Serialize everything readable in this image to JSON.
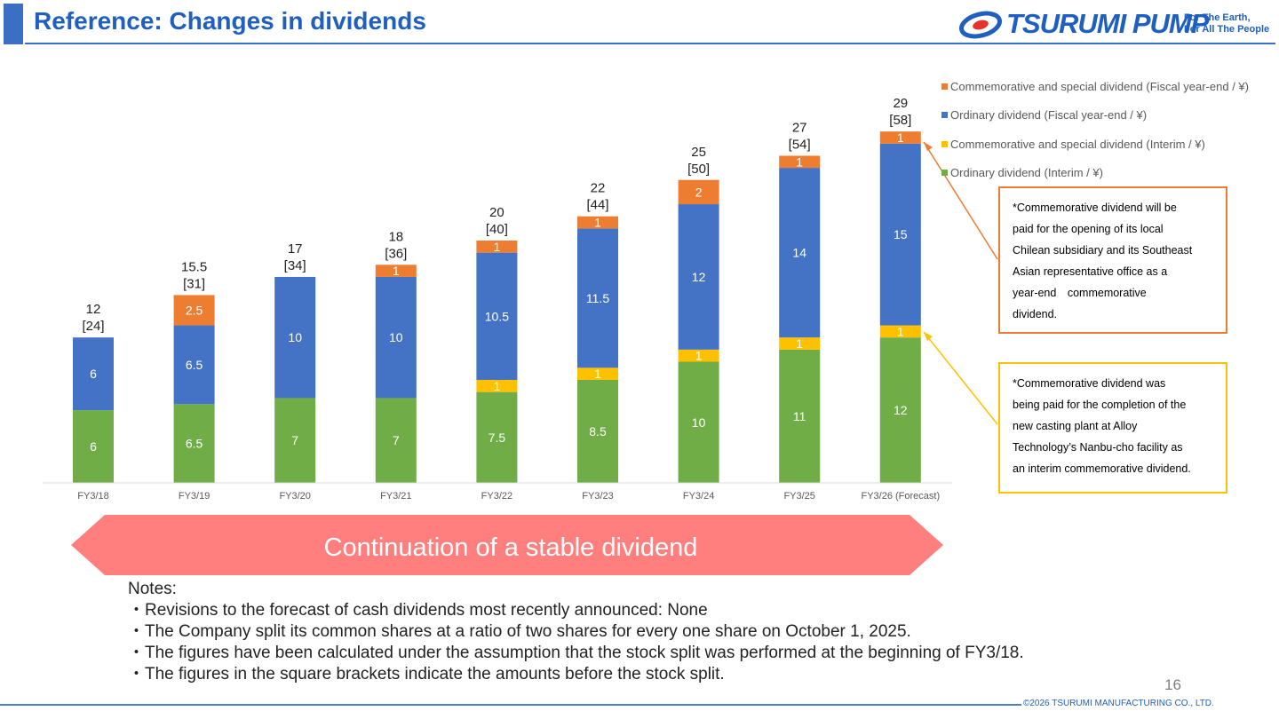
{
  "header": {
    "title": "Reference: Changes in dividends"
  },
  "logo": {
    "brand": "TSURUMI PUMP",
    "tagline_line1": "For The Earth,",
    "tagline_line2": "For All The People"
  },
  "colors": {
    "title": "#1f5fbf",
    "ordinary_interim": "#70ad47",
    "special_interim": "#ffc000",
    "ordinary_year_end": "#4472c4",
    "special_year_end": "#ed7d31",
    "arrow": "#ff7f7f"
  },
  "chart_data": {
    "type": "bar",
    "stacked": true,
    "categories": [
      "FY3/18",
      "FY3/19",
      "FY3/20",
      "FY3/21",
      "FY3/22",
      "FY3/23",
      "FY3/24",
      "FY3/25",
      "FY3/26 (Forecast)"
    ],
    "series": [
      {
        "name": "Ordinary dividend (Interim / ¥)",
        "color": "#70ad47",
        "values": [
          6,
          6.5,
          7,
          7,
          7.5,
          8.5,
          10,
          11,
          12
        ]
      },
      {
        "name": "Commemorative and special dividend (Interim / ¥)",
        "color": "#ffc000",
        "values": [
          0,
          0,
          0,
          0,
          1,
          1,
          1,
          1,
          1
        ]
      },
      {
        "name": "Ordinary dividend (Fiscal year-end / ¥)",
        "color": "#4472c4",
        "values": [
          6,
          6.5,
          10,
          10,
          10.5,
          11.5,
          12,
          14,
          15
        ]
      },
      {
        "name": "Commemorative and special dividend (Fiscal year-end / ¥)",
        "color": "#ed7d31",
        "values": [
          0,
          2.5,
          0,
          1,
          1,
          1,
          2,
          1,
          1
        ]
      }
    ],
    "totals": [
      "12",
      "15.5",
      "17",
      "18",
      "20",
      "22",
      "25",
      "27",
      "29"
    ],
    "pre_split": [
      "[24]",
      "[31]",
      "[34]",
      "[36]",
      "[40]",
      "[44]",
      "[50]",
      "[54]",
      "[58]"
    ],
    "legend_order": [
      "Commemorative and special dividend (Fiscal year-end / ¥)",
      "Ordinary dividend (Fiscal year-end / ¥)",
      "Commemorative and special dividend (Interim / ¥)",
      "Ordinary dividend (Interim / ¥)"
    ],
    "legend_position": "top-right",
    "grid": false
  },
  "callouts": {
    "year_end": [
      "*Commemorative dividend will be",
      "paid for the opening of its local",
      "Chilean subsidiary and its Southeast",
      "Asian representative office as a",
      "year-end　commemorative",
      "dividend."
    ],
    "interim": [
      "*Commemorative dividend was",
      "being paid for the completion of the",
      "new casting plant at Alloy",
      "Technology’s Nanbu-cho facility as",
      "an interim commemorative dividend."
    ]
  },
  "arrow_label": "Continuation of a stable dividend",
  "notes": {
    "heading": "Notes:",
    "items": [
      "・Revisions to the forecast of cash dividends most recently announced: None",
      "・The Company split its common shares at a ratio of two shares for every one share on October 1, 2025.",
      "・The figures have been calculated under the assumption that the stock split was performed at the beginning of FY3/18.",
      "・The figures in the square brackets indicate the amounts before the stock split."
    ]
  },
  "footer": {
    "page_number": "16",
    "copyright": "©2026 TSURUMI MANUFACTURING CO., LTD."
  }
}
